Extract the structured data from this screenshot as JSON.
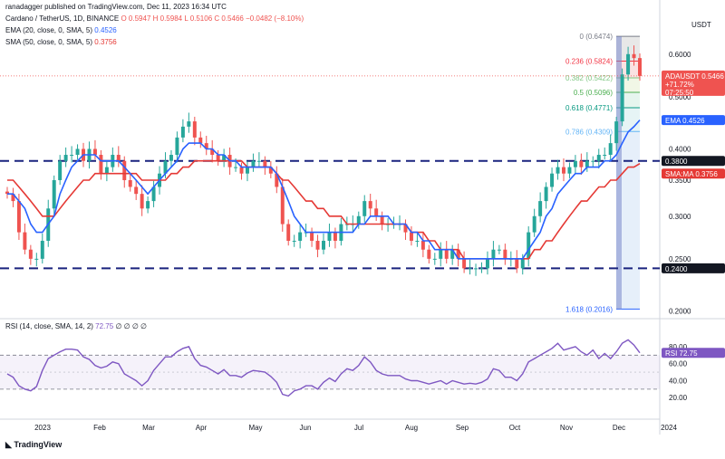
{
  "header": {
    "published": "ranadagger published on TradingView.com, Dec 11, 2023 16:34 UTC",
    "symbol_line": "Cardano / TetherUS, 1D, BINANCE",
    "ohlc": "O 0.5947  H 0.5984  L 0.5106  C 0.5466  −0.0482 (−8.10%)",
    "ema_legend": "EMA (20, close, 0, SMA, 5)",
    "ema_value": "0.4526",
    "sma_legend": "SMA (50, close, 0, SMA, 5)",
    "sma_value": "0.3756",
    "rsi_legend": "RSI (14, close, SMA, 14, 2)",
    "rsi_value": "72.75",
    "rsi_extra": "∅ ∅ ∅ ∅",
    "currency": "USDT",
    "footer_brand": "TradingView"
  },
  "colors": {
    "up": "#26a69a",
    "down": "#ef5350",
    "ema": "#2962ff",
    "sma": "#e53935",
    "rsi": "#7e57c2",
    "level": "#1a237e"
  },
  "price_tags": {
    "symbol": "ADAUSDT",
    "price": "0.5466",
    "change": "+71.72%",
    "countdown": "07:25:50",
    "ema_label": "EMA",
    "ema_price": "0.4526",
    "sma_label": "SMA:MA",
    "sma_price": "0.3756",
    "level_high": "0.3800",
    "level_low": "0.2400",
    "rsi_label": "RSI",
    "rsi_tag": "72.75"
  },
  "chart_data": {
    "type": "candlestick",
    "title": "Cardano / TetherUS, 1D, BINANCE",
    "y_axis": {
      "ticks": [
        "0.6000",
        "0.5000",
        "0.4000",
        "0.3500",
        "0.3000",
        "0.2500",
        "0.2000"
      ],
      "scale": "log",
      "range": [
        0.195,
        0.7
      ]
    },
    "x_axis": {
      "ticks": [
        "2023",
        "Feb",
        "Mar",
        "Apr",
        "May",
        "Jun",
        "Jul",
        "Aug",
        "Sep",
        "Oct",
        "Nov",
        "Dec",
        "2024"
      ]
    },
    "horizontal_levels": [
      0.38,
      0.24
    ],
    "fibonacci": [
      {
        "label": "0 (0.6474)",
        "value": 0.6474
      },
      {
        "label": "0.236 (0.5824)",
        "value": 0.5824
      },
      {
        "label": "0.382 (0.5422)",
        "value": 0.5422
      },
      {
        "label": "0.5 (0.5096)",
        "value": 0.5096
      },
      {
        "label": "0.618 (0.4771)",
        "value": 0.4771
      },
      {
        "label": "0.786 (0.4309)",
        "value": 0.4309
      },
      {
        "label": "1.618 (0.2016)",
        "value": 0.2016
      }
    ],
    "close_series": [
      0.33,
      0.32,
      0.28,
      0.26,
      0.25,
      0.25,
      0.27,
      0.31,
      0.35,
      0.38,
      0.39,
      0.39,
      0.4,
      0.38,
      0.4,
      0.39,
      0.36,
      0.37,
      0.39,
      0.38,
      0.35,
      0.34,
      0.33,
      0.31,
      0.32,
      0.34,
      0.36,
      0.38,
      0.39,
      0.42,
      0.44,
      0.45,
      0.42,
      0.41,
      0.4,
      0.39,
      0.38,
      0.39,
      0.37,
      0.37,
      0.36,
      0.37,
      0.38,
      0.38,
      0.37,
      0.36,
      0.34,
      0.29,
      0.27,
      0.27,
      0.28,
      0.28,
      0.27,
      0.26,
      0.27,
      0.28,
      0.27,
      0.29,
      0.29,
      0.29,
      0.3,
      0.32,
      0.31,
      0.3,
      0.29,
      0.29,
      0.29,
      0.29,
      0.28,
      0.27,
      0.27,
      0.26,
      0.25,
      0.25,
      0.26,
      0.25,
      0.26,
      0.25,
      0.24,
      0.24,
      0.24,
      0.24,
      0.25,
      0.26,
      0.26,
      0.25,
      0.25,
      0.24,
      0.25,
      0.28,
      0.3,
      0.32,
      0.34,
      0.36,
      0.37,
      0.36,
      0.37,
      0.38,
      0.37,
      0.38,
      0.38,
      0.39,
      0.39,
      0.41,
      0.45,
      0.55,
      0.6,
      0.59,
      0.5466
    ],
    "ema20_series": [
      0.33,
      0.33,
      0.32,
      0.31,
      0.29,
      0.28,
      0.28,
      0.29,
      0.3,
      0.33,
      0.35,
      0.37,
      0.38,
      0.39,
      0.39,
      0.39,
      0.38,
      0.38,
      0.38,
      0.38,
      0.37,
      0.36,
      0.35,
      0.34,
      0.33,
      0.34,
      0.35,
      0.36,
      0.37,
      0.38,
      0.4,
      0.41,
      0.41,
      0.41,
      0.4,
      0.4,
      0.39,
      0.39,
      0.38,
      0.38,
      0.37,
      0.37,
      0.37,
      0.37,
      0.37,
      0.37,
      0.36,
      0.34,
      0.32,
      0.3,
      0.29,
      0.28,
      0.28,
      0.28,
      0.28,
      0.28,
      0.28,
      0.28,
      0.28,
      0.28,
      0.29,
      0.29,
      0.3,
      0.3,
      0.3,
      0.3,
      0.29,
      0.29,
      0.29,
      0.28,
      0.28,
      0.27,
      0.27,
      0.26,
      0.26,
      0.26,
      0.26,
      0.25,
      0.25,
      0.25,
      0.25,
      0.25,
      0.25,
      0.25,
      0.25,
      0.25,
      0.25,
      0.25,
      0.25,
      0.26,
      0.27,
      0.28,
      0.3,
      0.31,
      0.33,
      0.34,
      0.35,
      0.36,
      0.36,
      0.37,
      0.37,
      0.37,
      0.38,
      0.38,
      0.39,
      0.41,
      0.43,
      0.44,
      0.4526
    ],
    "sma50_series": [
      0.35,
      0.35,
      0.34,
      0.33,
      0.32,
      0.31,
      0.3,
      0.3,
      0.3,
      0.31,
      0.32,
      0.33,
      0.34,
      0.35,
      0.35,
      0.36,
      0.36,
      0.36,
      0.36,
      0.36,
      0.36,
      0.36,
      0.36,
      0.35,
      0.35,
      0.35,
      0.35,
      0.35,
      0.36,
      0.36,
      0.37,
      0.37,
      0.38,
      0.38,
      0.38,
      0.38,
      0.38,
      0.38,
      0.38,
      0.38,
      0.38,
      0.37,
      0.37,
      0.37,
      0.37,
      0.37,
      0.36,
      0.35,
      0.35,
      0.34,
      0.33,
      0.32,
      0.32,
      0.31,
      0.31,
      0.3,
      0.3,
      0.3,
      0.29,
      0.29,
      0.29,
      0.29,
      0.29,
      0.29,
      0.29,
      0.29,
      0.29,
      0.29,
      0.29,
      0.28,
      0.28,
      0.28,
      0.27,
      0.27,
      0.26,
      0.26,
      0.26,
      0.26,
      0.25,
      0.25,
      0.25,
      0.25,
      0.25,
      0.25,
      0.25,
      0.25,
      0.25,
      0.25,
      0.25,
      0.25,
      0.26,
      0.26,
      0.27,
      0.27,
      0.28,
      0.29,
      0.3,
      0.31,
      0.32,
      0.32,
      0.33,
      0.34,
      0.34,
      0.35,
      0.35,
      0.36,
      0.37,
      0.37,
      0.3756
    ],
    "rsi_series": [
      48,
      44,
      34,
      30,
      28,
      33,
      52,
      66,
      70,
      74,
      77,
      77,
      76,
      68,
      65,
      58,
      55,
      57,
      62,
      60,
      48,
      44,
      40,
      34,
      40,
      52,
      60,
      68,
      68,
      74,
      78,
      80,
      66,
      58,
      56,
      52,
      48,
      53,
      46,
      46,
      44,
      49,
      52,
      51,
      50,
      45,
      38,
      24,
      22,
      28,
      30,
      34,
      34,
      30,
      38,
      43,
      39,
      48,
      54,
      52,
      58,
      68,
      62,
      52,
      48,
      46,
      46,
      46,
      42,
      40,
      40,
      38,
      36,
      38,
      40,
      36,
      40,
      38,
      36,
      37,
      36,
      38,
      42,
      54,
      52,
      44,
      44,
      40,
      48,
      62,
      66,
      70,
      74,
      78,
      84,
      76,
      78,
      80,
      74,
      70,
      76,
      66,
      72,
      66,
      74,
      84,
      88,
      82,
      72.75
    ],
    "rsi_levels": [
      70,
      30
    ],
    "rsi_ticks": [
      "80.00",
      "60.00",
      "40.00",
      "20.00"
    ]
  }
}
